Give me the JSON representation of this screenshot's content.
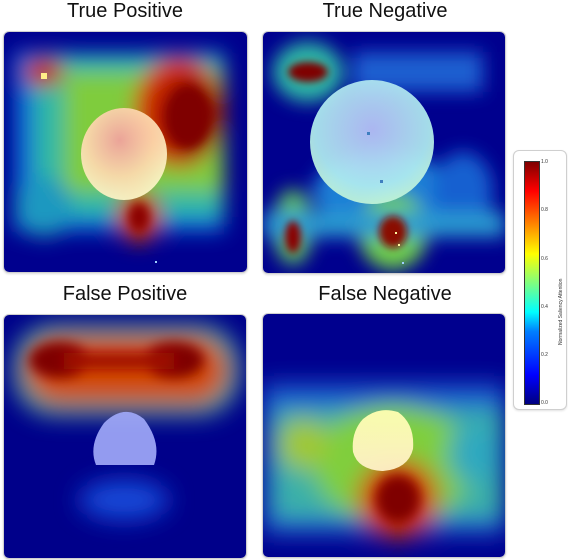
{
  "panels": {
    "tp": {
      "title": "True Positive"
    },
    "tn": {
      "title": "True Negative"
    },
    "fp": {
      "title": "False Positive"
    },
    "fn": {
      "title": "False Negative"
    }
  },
  "colorbar": {
    "label": "Normalized Saliency Attention",
    "ticks": [
      "1.0",
      "0.8",
      "0.6",
      "0.4",
      "0.2",
      "0.0"
    ]
  },
  "colors": {
    "background": "#00008a",
    "low": "#0000cc",
    "mid": "#00c8c8",
    "high_green": "#7fdf3f",
    "high": "#7f0000",
    "overlay": "#ffffff"
  }
}
